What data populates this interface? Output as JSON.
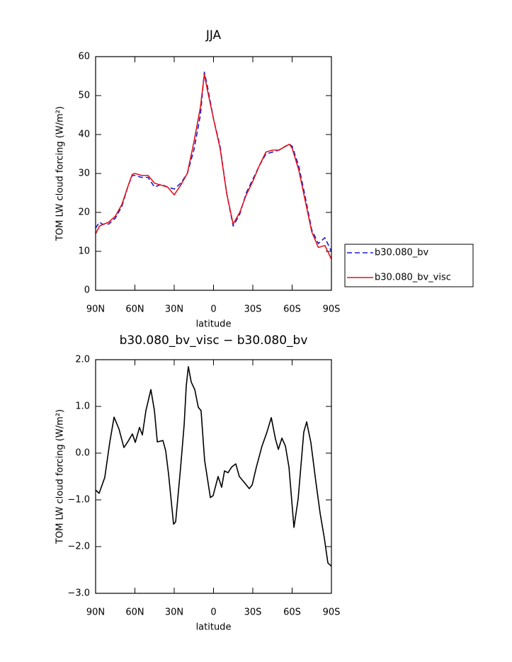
{
  "chart_data": [
    {
      "type": "line",
      "title": "JJA",
      "xlabel": "latitude",
      "ylabel": "TOM LW cloud forcing (W/m²)",
      "x": [
        90,
        87,
        85,
        80,
        75,
        70,
        65,
        62,
        60,
        55,
        50,
        45,
        40,
        35,
        30,
        25,
        20,
        15,
        10,
        7,
        5,
        0,
        -5,
        -10,
        -15,
        -20,
        -25,
        -30,
        -35,
        -40,
        -45,
        -50,
        -55,
        -58,
        -60,
        -65,
        -70,
        -75,
        -80,
        -85,
        -90
      ],
      "series": [
        {
          "name": "b30.080_bv",
          "color": "#1a1ad0",
          "linestyle": "dashed",
          "values": [
            16,
            17.5,
            17,
            17,
            18.5,
            21.5,
            27,
            29.5,
            29.5,
            29,
            29,
            26.5,
            27.2,
            26.5,
            26,
            27.5,
            30,
            36,
            45,
            56,
            53,
            44,
            37,
            25,
            16.5,
            19.5,
            25,
            28.5,
            32,
            35,
            35.5,
            36,
            37,
            37.5,
            37,
            32,
            24,
            15.5,
            12,
            13.5,
            10
          ]
        },
        {
          "name": "b30.080_bv_visc",
          "color": "#e0141e",
          "linestyle": "solid",
          "values": [
            14.5,
            16.5,
            16.8,
            17.5,
            19,
            22,
            27,
            29.8,
            30,
            29.5,
            29.5,
            27.5,
            27,
            26.5,
            24.5,
            27,
            30,
            38,
            47,
            55.5,
            52,
            44,
            36.5,
            25,
            17,
            20,
            24.5,
            28,
            32,
            35.5,
            36,
            36,
            37,
            37.5,
            36.5,
            31,
            23,
            15,
            11,
            11.5,
            8
          ]
        }
      ],
      "xlim": [
        90,
        -90
      ],
      "xticks": [
        {
          "value": 90,
          "label": "90N"
        },
        {
          "value": 60,
          "label": "60N"
        },
        {
          "value": 30,
          "label": "30N"
        },
        0,
        {
          "value": -30,
          "label": "30S"
        },
        {
          "value": -60,
          "label": "60S"
        },
        {
          "value": -90,
          "label": "90S"
        }
      ],
      "ylim": [
        0,
        60
      ],
      "yticks": [
        0,
        10,
        20,
        30,
        40,
        50,
        60
      ],
      "legend": "outside-right"
    },
    {
      "type": "line",
      "title": "b30.080_bv_visc − b30.080_bv",
      "xlabel": "latitude",
      "ylabel": "TOM LW cloud forcing (W/m²)",
      "x": [
        90,
        87.3,
        83,
        79.2,
        75.9,
        72.2,
        68.4,
        65.7,
        61.9,
        59.7,
        56.5,
        54.3,
        51.6,
        47.8,
        45.1,
        42.9,
        38.6,
        36.5,
        34.3,
        30.5,
        28.9,
        25.1,
        22.4,
        20.8,
        19.2,
        17,
        14.3,
        11.6,
        9.5,
        6.8,
        2.4,
        0.3,
        -3.5,
        -6.2,
        -8.4,
        -11.1,
        -13.8,
        -17,
        -19.7,
        -23,
        -27.3,
        -29.5,
        -32.7,
        -37,
        -40.8,
        -44.1,
        -47.3,
        -49.5,
        -52.2,
        -54.9,
        -57.6,
        -61.4,
        -64.6,
        -68.9,
        -71.1,
        -74.3,
        -78.1,
        -81.4,
        -84.6,
        -87.3,
        -90
      ],
      "values": [
        -0.79,
        -0.86,
        -0.52,
        0.23,
        0.77,
        0.52,
        0.12,
        0.23,
        0.41,
        0.23,
        0.55,
        0.39,
        0.91,
        1.36,
        0.91,
        0.24,
        0.27,
        0.05,
        -0.45,
        -1.52,
        -1.47,
        -0.3,
        0.61,
        1.44,
        1.85,
        1.52,
        1.36,
        0.98,
        0.91,
        -0.15,
        -0.95,
        -0.91,
        -0.5,
        -0.73,
        -0.38,
        -0.42,
        -0.3,
        -0.23,
        -0.5,
        -0.61,
        -0.76,
        -0.68,
        -0.3,
        0.15,
        0.45,
        0.76,
        0.3,
        0.08,
        0.32,
        0.15,
        -0.3,
        -1.59,
        -0.98,
        0.45,
        0.67,
        0.23,
        -0.61,
        -1.29,
        -1.82,
        -2.35,
        -2.42
      ],
      "color": "#000000",
      "xlim": [
        90,
        -90
      ],
      "xticks": [
        {
          "value": 90,
          "label": "90N"
        },
        {
          "value": 60,
          "label": "60N"
        },
        {
          "value": 30,
          "label": "30N"
        },
        0,
        {
          "value": -30,
          "label": "30S"
        },
        {
          "value": -60,
          "label": "60S"
        },
        {
          "value": -90,
          "label": "90S"
        }
      ],
      "ylim": [
        -3,
        2
      ],
      "yticks": [
        {
          "value": 2,
          "label": "2.0"
        },
        {
          "value": 1,
          "label": "1.0"
        },
        {
          "value": 0,
          "label": "0.0"
        },
        {
          "value": -1,
          "label": "−1.0"
        },
        {
          "value": -2,
          "label": "−2.0"
        },
        {
          "value": -3,
          "label": "−3.0"
        }
      ]
    }
  ]
}
